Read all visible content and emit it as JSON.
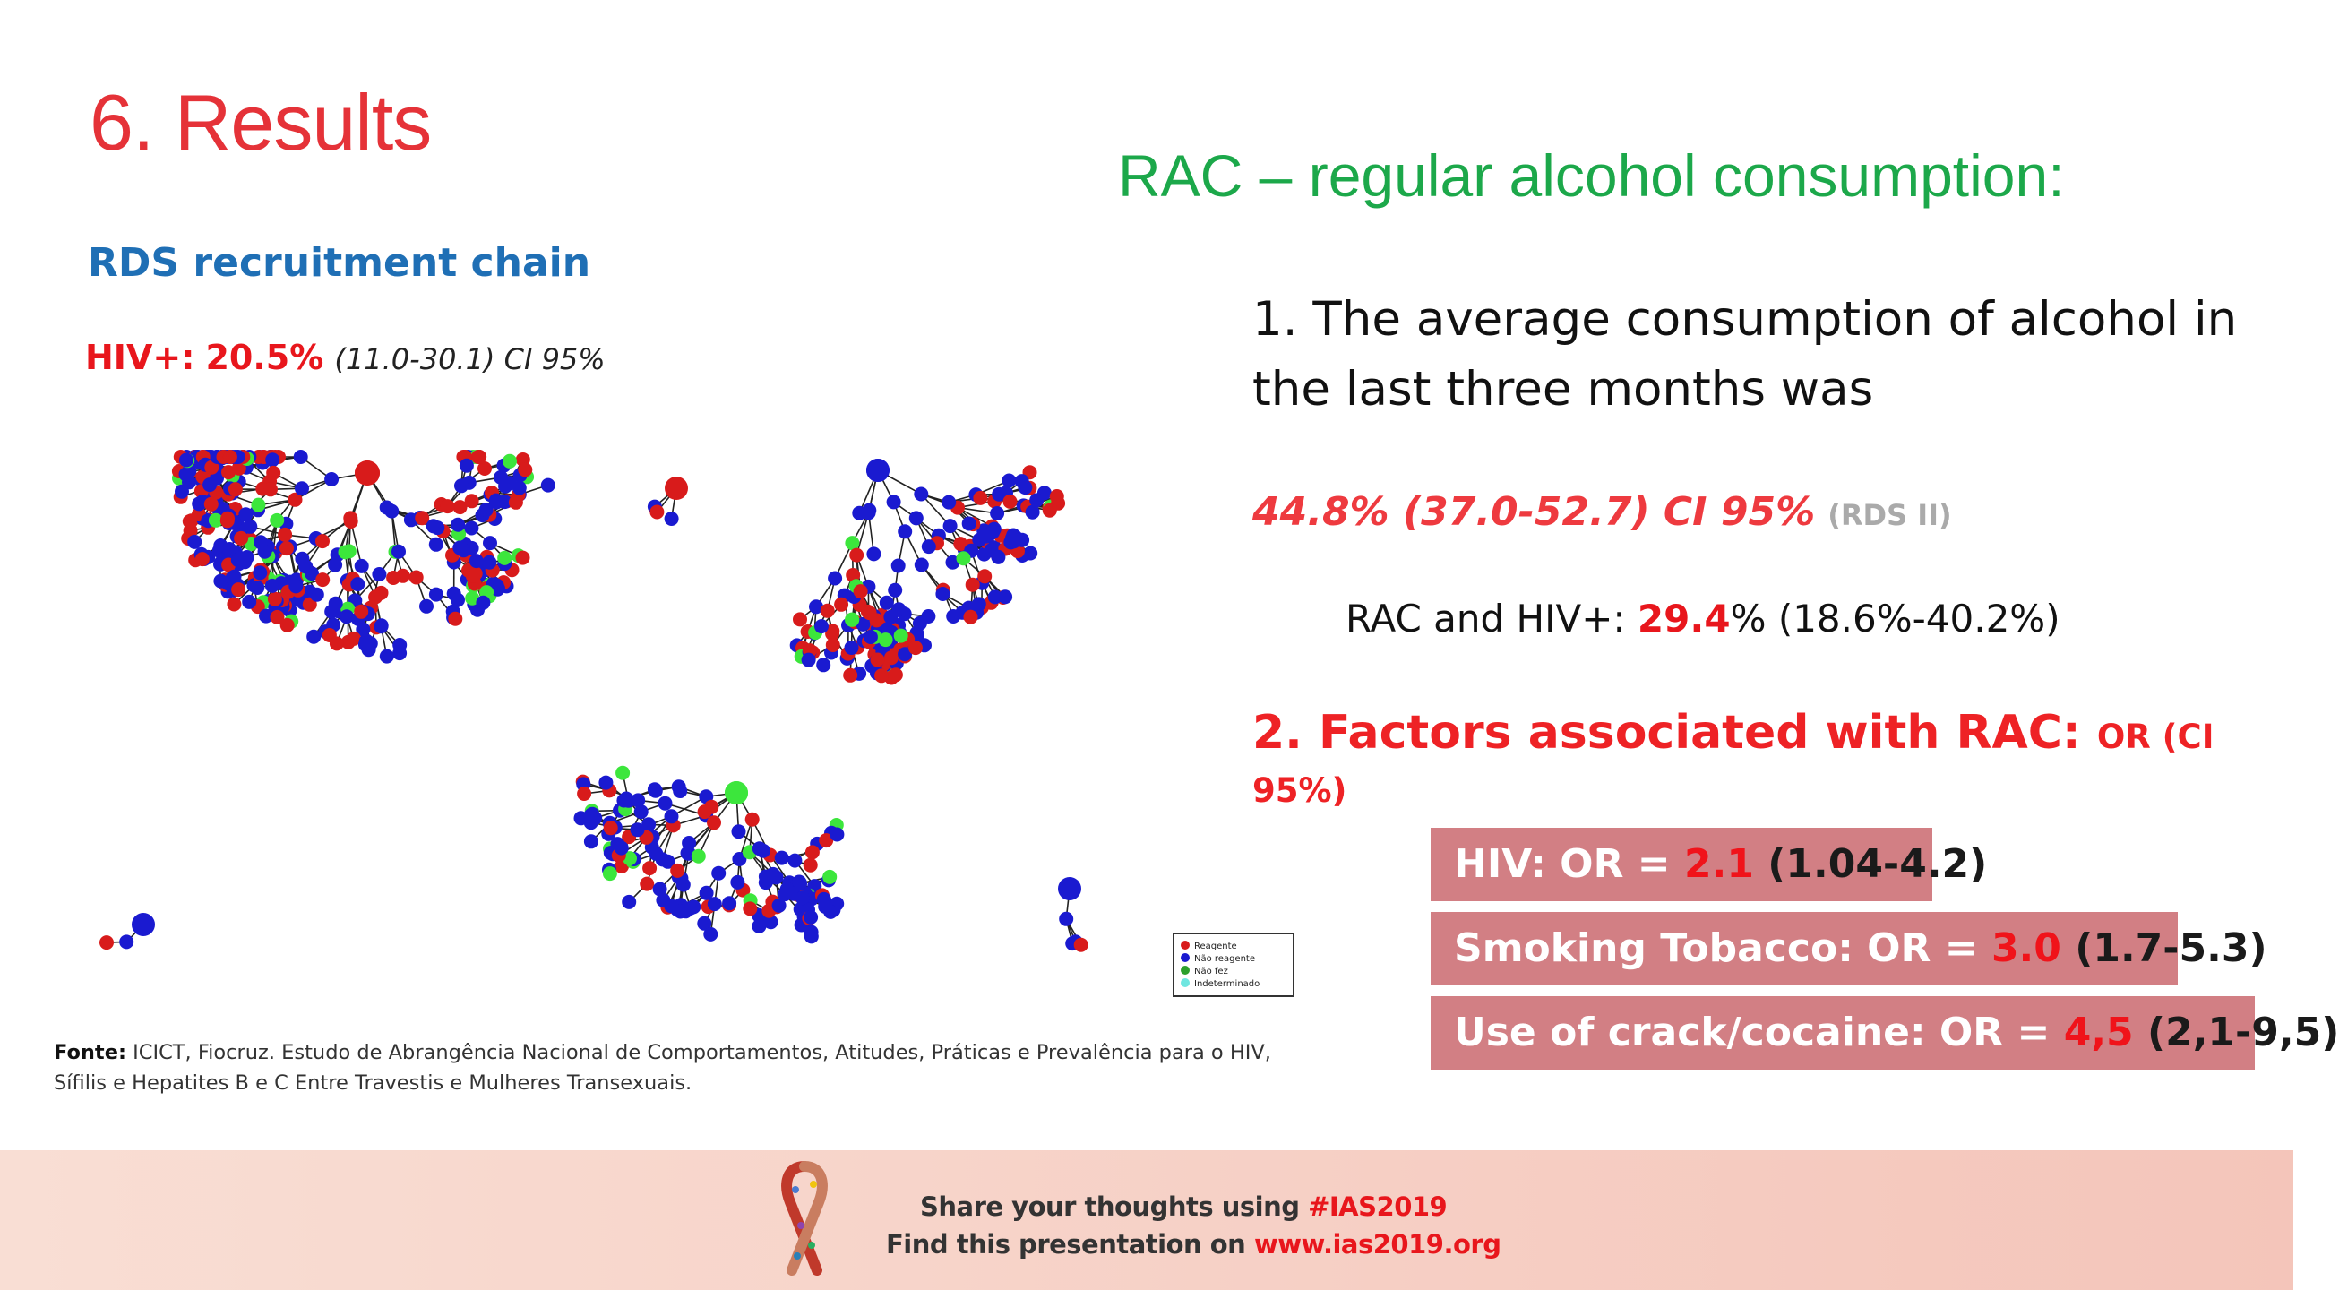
{
  "slide": {
    "title": "6. Results",
    "left": {
      "heading": "RDS recruitment chain",
      "hiv_label": "HIV+:",
      "hiv_value": "20.5%",
      "hiv_ci": "(11.0-30.1) CI 95%",
      "source_label": "Fonte:",
      "source_text": "ICICT, Fiocruz. Estudo de Abrangência Nacional de Comportamentos, Atitudes, Práticas e Prevalência para o HIV, Sífilis e Hepatites B e C Entre Travestis e Mulheres Transexuais.",
      "legend": [
        "Reagente",
        "Não reagente",
        "Não fez",
        "Indeterminado"
      ]
    },
    "right": {
      "heading": "RAC – regular alcohol consumption:",
      "point1": "1. The average consumption of alcohol in the last three months was",
      "avg_value": "44.8% (37.0-52.7) CI 95%",
      "avg_method": "(RDS II)",
      "rac_hiv_label": "RAC and HIV+:",
      "rac_hiv_value": "29.4",
      "rac_hiv_rest": "% (18.6%-40.2%)",
      "factors_title": "2. Factors associated with RAC:",
      "factors_suffix": "OR (CI 95%)",
      "factors": [
        {
          "label": "HIV: OR = ",
          "value": "2.1",
          "ci": "(1.04-4.2)"
        },
        {
          "label": "Smoking Tobacco: OR = ",
          "value": "3.0",
          "ci": "(1.7-5.3)"
        },
        {
          "label": "Use of crack/cocaine: OR = ",
          "value": "4,5",
          "ci": "(2,1-9,5)"
        }
      ]
    }
  },
  "footer": {
    "share_prefix": "Share your thoughts using ",
    "share_tag": "#IAS2019",
    "find_prefix": "Find this presentation on ",
    "find_url": "www.ias2019.org"
  },
  "colors": {
    "title": "#e53238",
    "rac_heading": "#1ca84a",
    "rds_heading": "#1f6fb5",
    "node_red": "#d81b1b",
    "node_blue": "#1a1ad0",
    "node_green": "#3ce63c",
    "node_cyan": "#6fe6e0",
    "factor_box": "#d27f84"
  }
}
